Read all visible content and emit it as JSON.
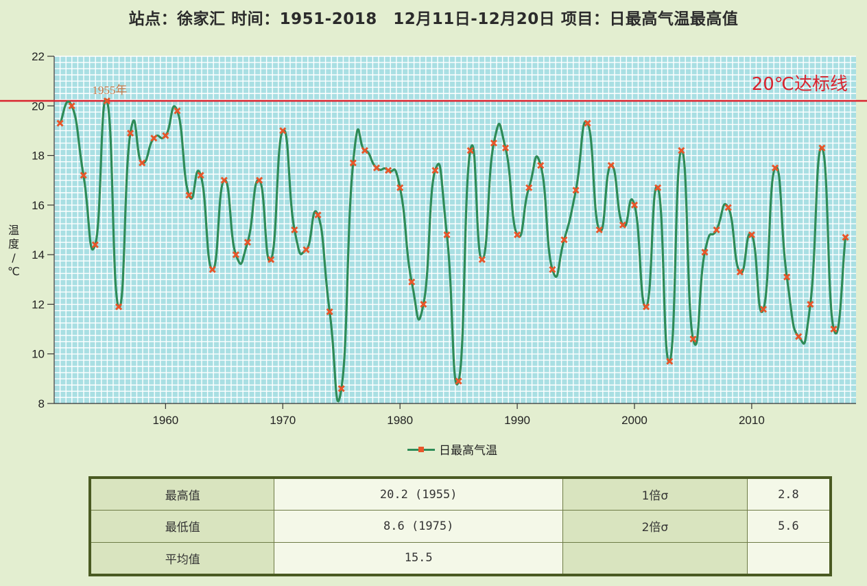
{
  "title": "站点：徐家汇 时间：1951-2018　12月11日-12月20日 项目：日最高气温最高值",
  "ylabel_chars": [
    "温",
    "度",
    "/",
    "℃"
  ],
  "threshold_label": "20℃达标线",
  "annotation_label": "1955年",
  "legend_label": "日最高气温",
  "colors": {
    "background": "#e3eed0",
    "plot_bg": "#a9dfe3",
    "grid": "#ffffff",
    "line": "#2e8b57",
    "marker": "#e8562a",
    "threshold": "#d9232e",
    "annotation": "#c87a4a"
  },
  "chart_data": {
    "type": "line",
    "title": "站点：徐家汇 时间：1951-2018　12月11日-12月20日 项目：日最高气温最高值",
    "xlabel": "",
    "ylabel": "温度/℃",
    "xlim": [
      1950.5,
      2018.9
    ],
    "ylim": [
      8,
      22
    ],
    "grid": true,
    "legend_position": "bottom-center",
    "x_ticks": [
      1960,
      1970,
      1980,
      1990,
      2000,
      2010
    ],
    "y_ticks": [
      8,
      10,
      12,
      14,
      16,
      18,
      20,
      22
    ],
    "threshold": {
      "y": 20.2,
      "label": "20℃达标线"
    },
    "annotations": [
      {
        "x": 1955,
        "y": 20.2,
        "text": "1955年"
      }
    ],
    "series": [
      {
        "name": "日最高气温",
        "x": [
          1951,
          1952,
          1953,
          1954,
          1955,
          1956,
          1957,
          1958,
          1959,
          1960,
          1961,
          1962,
          1963,
          1964,
          1965,
          1966,
          1967,
          1968,
          1969,
          1970,
          1971,
          1972,
          1973,
          1974,
          1975,
          1976,
          1977,
          1978,
          1979,
          1980,
          1981,
          1982,
          1983,
          1984,
          1985,
          1986,
          1987,
          1988,
          1989,
          1990,
          1991,
          1992,
          1993,
          1994,
          1995,
          1996,
          1997,
          1998,
          1999,
          2000,
          2001,
          2002,
          2003,
          2004,
          2005,
          2006,
          2007,
          2008,
          2009,
          2010,
          2011,
          2012,
          2013,
          2014,
          2015,
          2016,
          2017,
          2018
        ],
        "values": [
          19.3,
          20.0,
          17.2,
          14.4,
          20.2,
          11.9,
          18.9,
          17.7,
          18.7,
          18.8,
          19.8,
          16.4,
          17.2,
          13.4,
          17.0,
          14.0,
          14.5,
          17.0,
          13.8,
          19.0,
          15.0,
          14.2,
          15.6,
          11.7,
          8.6,
          17.7,
          18.2,
          17.5,
          17.4,
          16.7,
          12.9,
          12.0,
          17.4,
          14.8,
          8.9,
          18.2,
          13.8,
          18.5,
          18.3,
          14.8,
          16.7,
          17.6,
          13.4,
          14.6,
          16.6,
          19.3,
          15.0,
          17.6,
          15.2,
          16.0,
          11.9,
          16.7,
          9.7,
          18.2,
          10.6,
          14.1,
          15.0,
          15.9,
          13.3,
          14.8,
          11.8,
          17.5,
          13.1,
          10.7,
          12.0,
          18.3,
          11.0,
          14.7
        ]
      }
    ]
  },
  "stats_table": {
    "rows": [
      [
        "最高值",
        "20.2 (1955)",
        "1倍σ",
        "2.8"
      ],
      [
        "最低值",
        "8.6 (1975)",
        "2倍σ",
        "5.6"
      ],
      [
        "平均值",
        "15.5",
        "",
        ""
      ]
    ]
  }
}
